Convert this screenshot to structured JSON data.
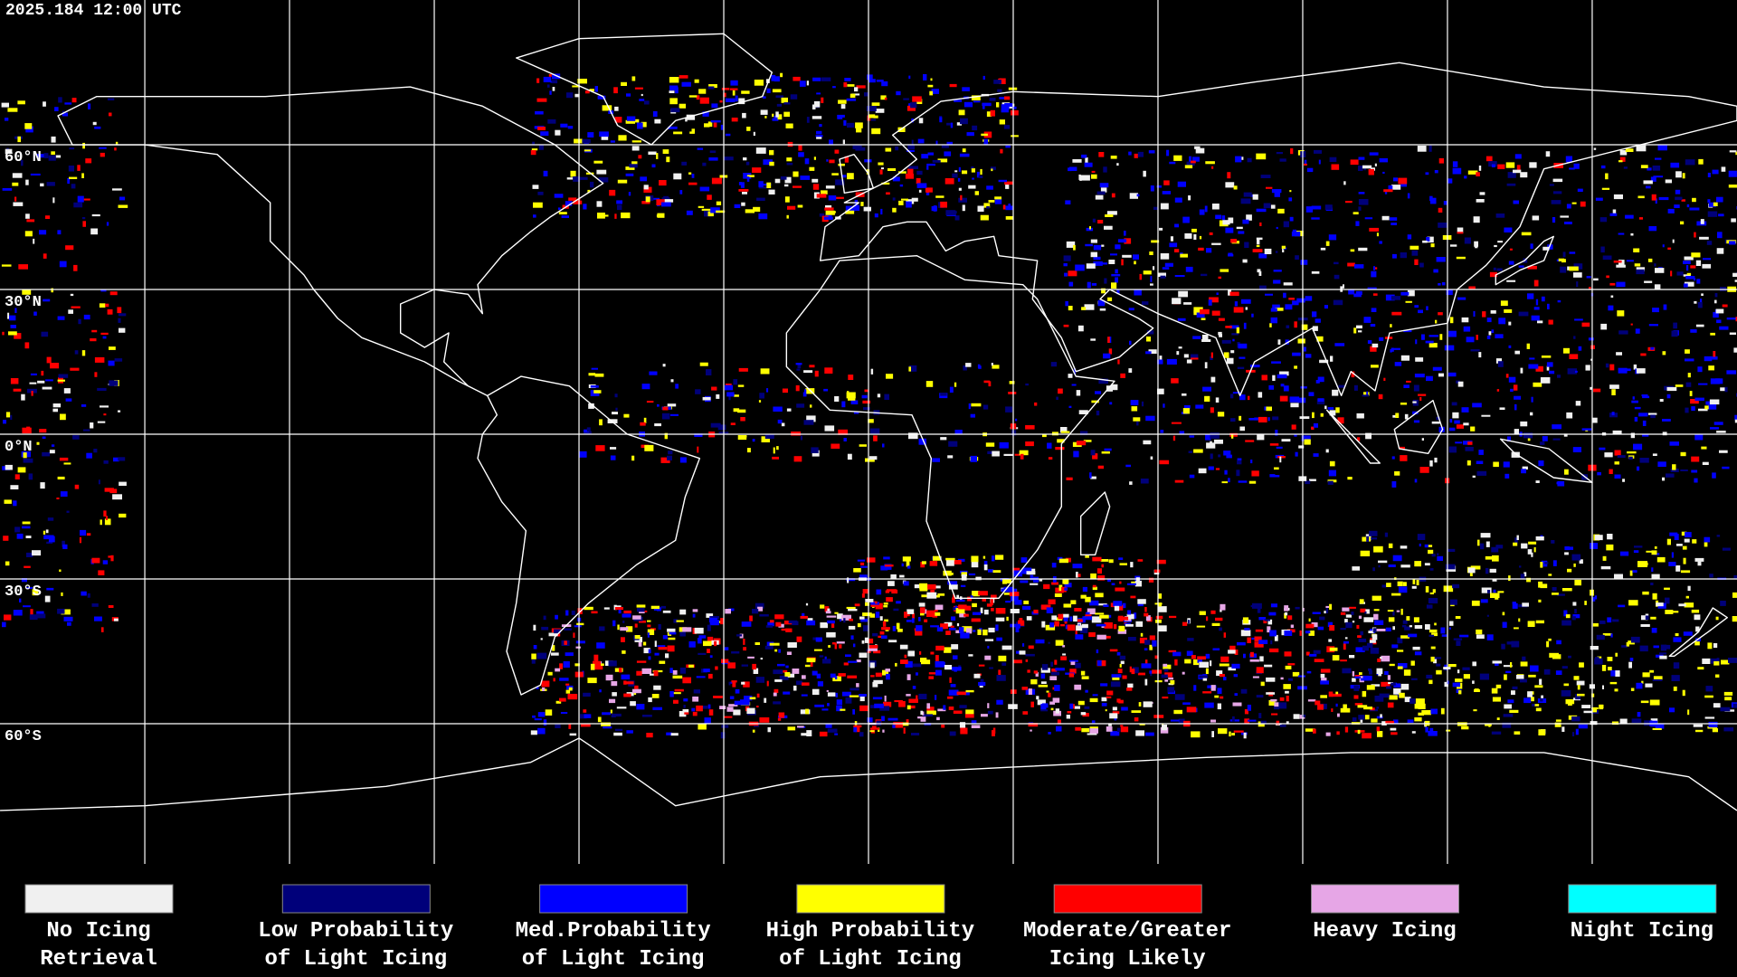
{
  "timestamp": "2025.184 12:00 UTC",
  "latitude_labels": [
    "60°N",
    "30°N",
    "0°N",
    "30°S",
    "60°S"
  ],
  "legend": [
    {
      "lines": [
        "No Icing",
        "Retrieval"
      ],
      "color": "#f0f0f0"
    },
    {
      "lines": [
        "Low Probability",
        "of Light Icing"
      ],
      "color": "#00007a"
    },
    {
      "lines": [
        "Med.Probability",
        "of Light Icing"
      ],
      "color": "#0000ff"
    },
    {
      "lines": [
        "High Probability",
        "of Light Icing"
      ],
      "color": "#ffff00"
    },
    {
      "lines": [
        "Moderate/Greater",
        "Icing Likely"
      ],
      "color": "#ff0000"
    },
    {
      "lines": [
        "Heavy Icing"
      ],
      "color": "#e6a6e6"
    },
    {
      "lines": [
        "Night Icing"
      ],
      "color": "#00ffff"
    }
  ]
}
